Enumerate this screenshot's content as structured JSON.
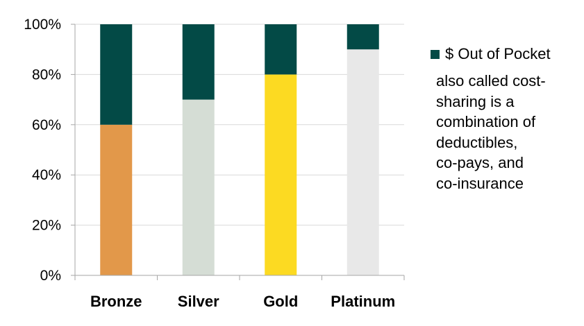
{
  "chart_data": {
    "type": "bar",
    "stacked": true,
    "categories": [
      "Bronze",
      "Silver",
      "Gold",
      "Platinum"
    ],
    "ylim": [
      0,
      100
    ],
    "yticks": [
      0,
      20,
      40,
      60,
      80,
      100
    ],
    "ytick_labels": [
      "0%",
      "20%",
      "40%",
      "60%",
      "80%",
      "100%"
    ],
    "grid": true,
    "legend_position": "right",
    "series": [
      {
        "values": [
          60,
          70,
          80,
          90
        ],
        "colors": [
          "#E2984A",
          "#D5DDD5",
          "#FCDA22",
          "#E8E8E8"
        ]
      },
      {
        "name": "$ Out of Pocket",
        "values": [
          40,
          30,
          20,
          10
        ],
        "color": "#034A46"
      }
    ],
    "annotation": "also called cost-\nsharing is a\ncombination of\ndeductibles,\nco-pays, and\nco-insurance",
    "xlabel": "",
    "ylabel": "",
    "title": ""
  }
}
